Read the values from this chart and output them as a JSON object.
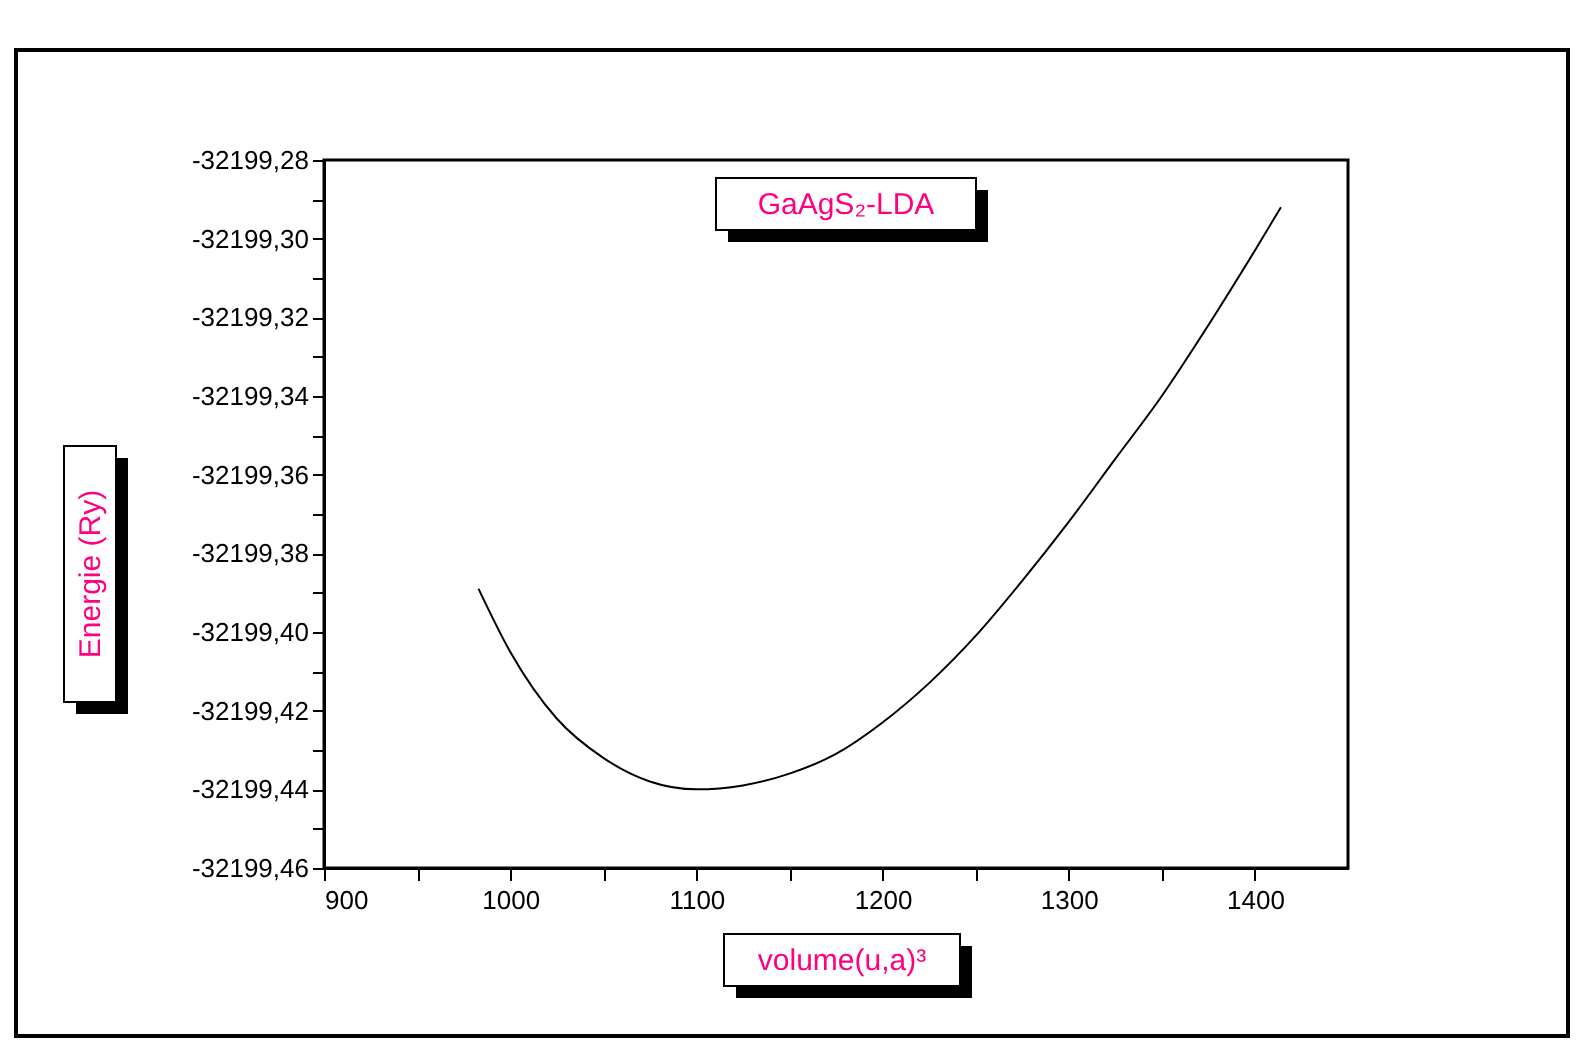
{
  "chart_data": {
    "type": "line",
    "title": "GaAgS₂-LDA",
    "xlabel": "volume(u,a)³",
    "ylabel": "Energie (Ry)",
    "series": [
      {
        "color": "#000000",
        "x": [
          983,
          1000,
          1025,
          1050,
          1075,
          1100,
          1125,
          1150,
          1175,
          1200,
          1225,
          1250,
          1275,
          1300,
          1325,
          1350,
          1375,
          1400,
          1414
        ],
        "values": [
          -32199.389,
          -32199.405,
          -32199.422,
          -32199.432,
          -32199.438,
          -32199.44,
          -32199.439,
          -32199.436,
          -32199.431,
          -32199.423,
          -32199.413,
          -32199.401,
          -32199.387,
          -32199.372,
          -32199.356,
          -32199.34,
          -32199.322,
          -32199.303,
          -32199.292
        ]
      }
    ],
    "xlim": [
      900,
      1450
    ],
    "xticks": [
      900,
      {
        "value": 950,
        "label": null
      },
      1000,
      {
        "value": 1050,
        "label": null
      },
      1100,
      {
        "value": 1150,
        "label": null
      },
      1200,
      {
        "value": 1250,
        "label": null
      },
      1300,
      {
        "value": 1350,
        "label": null
      },
      1400
    ],
    "ylim": [
      -32199.46,
      -32199.28
    ],
    "yticks": [
      {
        "value": -32199.46,
        "label": "-32199,46"
      },
      {
        "value": -32199.45,
        "label": null
      },
      {
        "value": -32199.44,
        "label": "-32199,44"
      },
      {
        "value": -32199.43,
        "label": null
      },
      {
        "value": -32199.42,
        "label": "-32199,42"
      },
      {
        "value": -32199.41,
        "label": null
      },
      {
        "value": -32199.4,
        "label": "-32199,40"
      },
      {
        "value": -32199.39,
        "label": null
      },
      {
        "value": -32199.38,
        "label": "-32199,38"
      },
      {
        "value": -32199.37,
        "label": null
      },
      {
        "value": -32199.36,
        "label": "-32199,36"
      },
      {
        "value": -32199.35,
        "label": null
      },
      {
        "value": -32199.34,
        "label": "-32199,34"
      },
      {
        "value": -32199.33,
        "label": null
      },
      {
        "value": -32199.32,
        "label": "-32199,32"
      },
      {
        "value": -32199.31,
        "label": null
      },
      {
        "value": -32199.3,
        "label": "-32199,30"
      },
      {
        "value": -32199.29,
        "label": null
      },
      {
        "value": -32199.28,
        "label": "-32199,28"
      }
    ],
    "grid": false,
    "line_style": "solid",
    "marker": "none"
  }
}
